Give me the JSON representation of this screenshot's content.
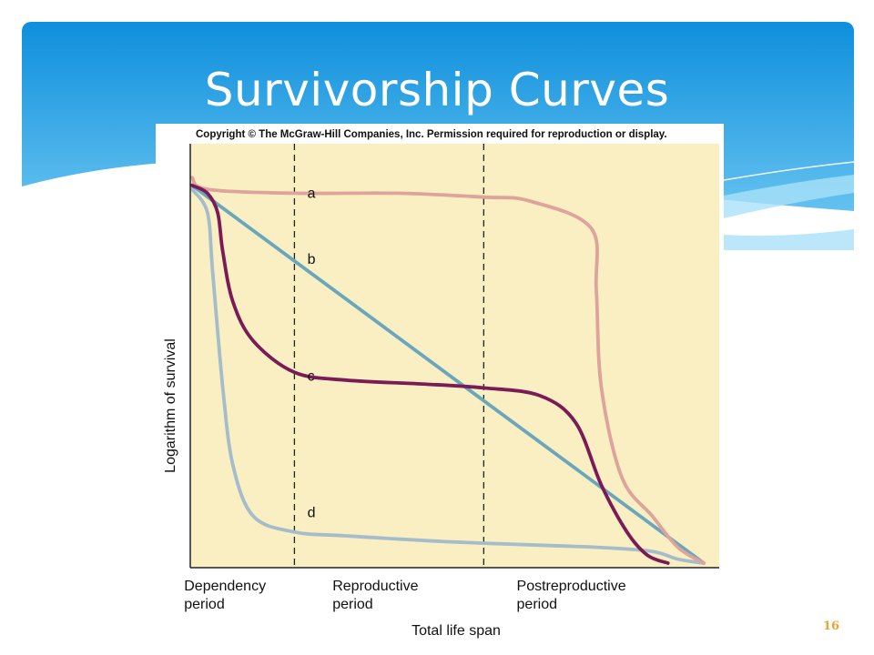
{
  "slide": {
    "title": "Survivorship Curves",
    "number": "16",
    "colors": {
      "sky_top": "#0e8fdc",
      "sky_bottom": "#7fd0f5",
      "title": "#ffffff",
      "number": "#e6a733"
    }
  },
  "figure": {
    "copyright": "Copyright © The McGraw-Hill Companies, Inc. Permission required for reproduction or display.",
    "plot_background": "#f9efc3"
  },
  "chart_data": {
    "type": "line",
    "title": "",
    "xlabel": "Total life span",
    "ylabel": "Logarithm of survival",
    "xlim": [
      0,
      100
    ],
    "ylim": [
      0,
      100
    ],
    "log_scale_y": true,
    "grid": false,
    "period_boundaries": [
      20,
      57
    ],
    "period_labels": [
      {
        "text": [
          "Dependency",
          "period"
        ],
        "x": 2
      },
      {
        "text": [
          "Reproductive",
          "period"
        ],
        "x": 31
      },
      {
        "text": [
          "Postreproductive",
          "period"
        ],
        "x": 67
      }
    ],
    "series": [
      {
        "name": "a",
        "label_x": 22,
        "label_y": 95,
        "color": "#dea39a",
        "x": [
          0,
          3,
          20,
          40,
          57,
          66,
          78,
          79,
          80,
          84,
          90,
          95,
          100
        ],
        "y": [
          99,
          96,
          95,
          95,
          94,
          93,
          86,
          70,
          45,
          22,
          12,
          4,
          0
        ]
      },
      {
        "name": "b",
        "label_x": 22,
        "label_y": 78,
        "color": "#6aa6bd",
        "x": [
          0,
          100
        ],
        "y": [
          97,
          0
        ]
      },
      {
        "name": "c",
        "label_x": 22,
        "label_y": 48,
        "color": "#7a1b57",
        "x": [
          0,
          3,
          5,
          6,
          8,
          12,
          20,
          30,
          45,
          57,
          68,
          75,
          80,
          85,
          89,
          93
        ],
        "y": [
          97,
          95,
          90,
          80,
          67,
          57,
          49,
          47,
          46,
          45,
          43,
          36,
          20,
          8,
          2,
          0
        ]
      },
      {
        "name": "d",
        "label_x": 22,
        "label_y": 13,
        "color": "#a5bccb",
        "x": [
          0,
          3,
          4,
          6,
          8,
          12,
          20,
          30,
          50,
          70,
          80,
          90,
          95,
          100
        ],
        "y": [
          96,
          90,
          75,
          45,
          25,
          12,
          8,
          7,
          5.5,
          4.5,
          4,
          3,
          1,
          0
        ]
      }
    ]
  }
}
